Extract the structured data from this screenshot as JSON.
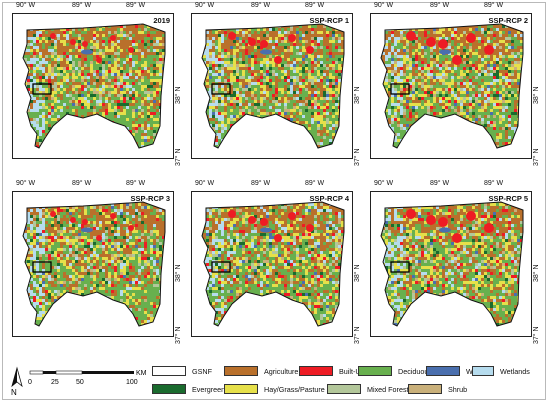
{
  "panels": [
    {
      "title": "2019",
      "x_ticks": [
        "90° W",
        "89° W",
        "89° W"
      ],
      "y_ticks": [
        "38° N",
        "37° N"
      ]
    },
    {
      "title": "SSP-RCP 1",
      "x_ticks": [
        "90° W",
        "89° W",
        "89° W"
      ],
      "y_ticks": [
        "38° N",
        "37° N"
      ]
    },
    {
      "title": "SSP-RCP 2",
      "x_ticks": [
        "90° W",
        "89° W",
        "89° W"
      ],
      "y_ticks": [
        "38° N",
        "37° N"
      ]
    },
    {
      "title": "SSP-RCP 3",
      "x_ticks": [
        "90° W",
        "89° W",
        "89° W"
      ],
      "y_ticks": [
        "38° N",
        "37° N"
      ]
    },
    {
      "title": "SSP-RCP 4",
      "x_ticks": [
        "90° W",
        "89° W",
        "89° W"
      ],
      "y_ticks": [
        "38° N",
        "37° N"
      ]
    },
    {
      "title": "SSP-RCP 5",
      "x_ticks": [
        "90° W",
        "89° W",
        "89° W"
      ],
      "y_ticks": [
        "38° N",
        "37° N"
      ]
    }
  ],
  "legend": [
    {
      "label": "GSNF",
      "color": "#ffffff"
    },
    {
      "label": "Agriculture",
      "color": "#b9702b"
    },
    {
      "label": "Built-Up",
      "color": "#ee1c24"
    },
    {
      "label": "Deciduous Forest",
      "color": "#68b04e"
    },
    {
      "label": "Water",
      "color": "#4a6fae"
    },
    {
      "label": "Wetlands",
      "color": "#b6dcee"
    },
    {
      "label": "Evergreen Forest",
      "color": "#1a6b2e"
    },
    {
      "label": "Hay/Grass/Pasture",
      "color": "#e6e04a"
    },
    {
      "label": "Mixed Forest",
      "color": "#b3c79a"
    },
    {
      "label": "Shrub",
      "color": "#c9b07a"
    }
  ],
  "scale": {
    "unit": "KM",
    "ticks": [
      "0",
      "25",
      "50",
      "100"
    ]
  },
  "north_label": "N"
}
